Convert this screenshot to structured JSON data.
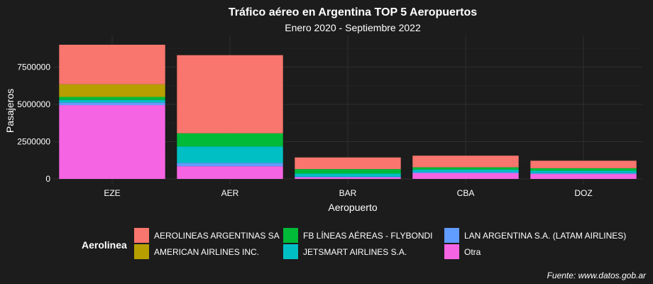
{
  "chart_data": {
    "type": "bar",
    "stacked": true,
    "title": "Tráfico aéreo en Argentina TOP 5 Aeropuertos",
    "subtitle": "Enero 2020 - Septiembre 2022",
    "xlabel": "Aeropuerto",
    "ylabel": "Pasajeros",
    "caption": "Fuente: www.datos.gob.ar",
    "categories": [
      "EZE",
      "AER",
      "BAR",
      "CBA",
      "DOZ"
    ],
    "ylim": [
      0,
      9500000
    ],
    "y_ticks": [
      {
        "value": 0,
        "label": "0"
      },
      {
        "value": 2500000,
        "label": "2500000"
      },
      {
        "value": 5000000,
        "label": "5000000"
      },
      {
        "value": 7500000,
        "label": "7500000"
      }
    ],
    "grid": true,
    "legend": {
      "title": "Aerolinea",
      "position": "bottom"
    },
    "series": [
      {
        "name": "Otra",
        "color": "#f564e3",
        "values": [
          4950000,
          850000,
          100000,
          380000,
          330000
        ]
      },
      {
        "name": "LAN ARGENTINA S.A. (LATAM AIRLINES)",
        "color": "#619cff",
        "values": [
          180000,
          230000,
          60000,
          80000,
          60000
        ]
      },
      {
        "name": "JETSMART AIRLINES S.A.",
        "color": "#00bfc4",
        "values": [
          170000,
          1100000,
          200000,
          170000,
          160000
        ]
      },
      {
        "name": "FB LÍNEAS AÉREAS - FLYBONDI",
        "color": "#00ba38",
        "values": [
          200000,
          880000,
          300000,
          150000,
          170000
        ]
      },
      {
        "name": "AMERICAN AIRLINES INC.",
        "color": "#b79f00",
        "values": [
          850000,
          0,
          0,
          0,
          0
        ]
      },
      {
        "name": "AEROLINEAS ARGENTINAS SA",
        "color": "#f8766d",
        "values": [
          2650000,
          5240000,
          780000,
          780000,
          500000
        ]
      }
    ],
    "legend_order": [
      "AEROLINEAS ARGENTINAS SA",
      "AMERICAN AIRLINES INC.",
      "FB LÍNEAS AÉREAS - FLYBONDI",
      "JETSMART AIRLINES S.A.",
      "LAN ARGENTINA S.A. (LATAM AIRLINES)",
      "Otra"
    ]
  }
}
